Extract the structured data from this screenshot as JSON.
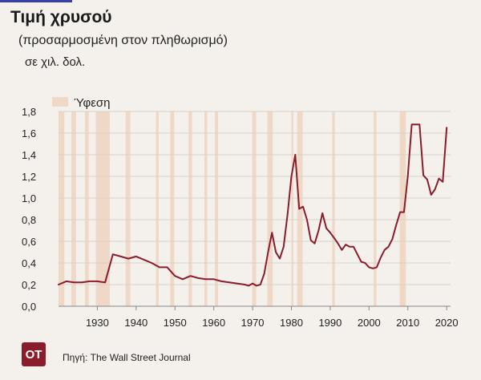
{
  "header": {
    "title": "Τιμή χρυσού",
    "subtitle": "(προσαρμοσμένη στον πληθωρισμό)",
    "unit": "σε χιλ. δολ."
  },
  "footer": {
    "logo_text": "ΟΤ",
    "source": "Πηγή: The Wall Street Journal"
  },
  "colors": {
    "line": "#8a1c2c",
    "recession": "#f0d8c6",
    "grid": "#d6d2cc",
    "background": "#f4f1ec"
  },
  "chart_data": {
    "type": "line",
    "legend": {
      "label": "Ύφεση",
      "position": "top-left"
    },
    "xlim": [
      1920,
      2021
    ],
    "ylim": [
      0,
      1.8
    ],
    "x_ticks": [
      1930,
      1940,
      1950,
      1960,
      1970,
      1980,
      1990,
      2000,
      2010,
      2020
    ],
    "y_ticks": [
      {
        "value": 0,
        "label": "0,0"
      },
      {
        "value": 0.2,
        "label": "0,2"
      },
      {
        "value": 0.4,
        "label": "0,4"
      },
      {
        "value": 0.6,
        "label": "0,6"
      },
      {
        "value": 0.8,
        "label": "0,8"
      },
      {
        "value": 1.0,
        "label": "1,0"
      },
      {
        "value": 1.2,
        "label": "1,2"
      },
      {
        "value": 1.4,
        "label": "1,4"
      },
      {
        "value": 1.6,
        "label": "1,6"
      },
      {
        "value": 1.8,
        "label": "1,8"
      }
    ],
    "grid": "horizontal",
    "recessions": [
      [
        1920.0,
        1921.5
      ],
      [
        1923.3,
        1924.5
      ],
      [
        1926.8,
        1927.8
      ],
      [
        1929.6,
        1933.2
      ],
      [
        1937.3,
        1938.5
      ],
      [
        1945.1,
        1945.8
      ],
      [
        1948.8,
        1949.8
      ],
      [
        1953.5,
        1954.4
      ],
      [
        1957.6,
        1958.3
      ],
      [
        1960.3,
        1961.1
      ],
      [
        1969.9,
        1970.9
      ],
      [
        1973.8,
        1975.2
      ],
      [
        1980.0,
        1980.5
      ],
      [
        1981.5,
        1982.9
      ],
      [
        1990.5,
        1991.2
      ],
      [
        2001.2,
        2001.9
      ],
      [
        2007.9,
        2009.5
      ]
    ],
    "series": [
      {
        "x": [
          1920,
          1922,
          1924,
          1926,
          1928,
          1930,
          1932,
          1934,
          1936,
          1938,
          1940,
          1942,
          1944,
          1946,
          1948,
          1950,
          1952,
          1954,
          1956,
          1958,
          1960,
          1962,
          1964,
          1966,
          1968,
          1969,
          1970,
          1971,
          1972,
          1973,
          1974,
          1975,
          1976,
          1977,
          1978,
          1979,
          1980,
          1981,
          1982,
          1983,
          1984,
          1985,
          1986,
          1987,
          1988,
          1989,
          1990,
          1991,
          1992,
          1993,
          1994,
          1995,
          1996,
          1997,
          1998,
          1999,
          2000,
          2001,
          2002,
          2003,
          2004,
          2005,
          2006,
          2007,
          2008,
          2009,
          2010,
          2011,
          2012,
          2013,
          2014,
          2015,
          2016,
          2017,
          2018,
          2019,
          2020
        ],
        "y": [
          0.2,
          0.23,
          0.22,
          0.22,
          0.23,
          0.23,
          0.22,
          0.48,
          0.46,
          0.44,
          0.46,
          0.43,
          0.4,
          0.36,
          0.36,
          0.28,
          0.25,
          0.28,
          0.26,
          0.25,
          0.25,
          0.23,
          0.22,
          0.21,
          0.2,
          0.19,
          0.21,
          0.19,
          0.2,
          0.3,
          0.5,
          0.68,
          0.5,
          0.44,
          0.55,
          0.85,
          1.2,
          1.4,
          0.9,
          0.92,
          0.8,
          0.61,
          0.58,
          0.7,
          0.86,
          0.72,
          0.68,
          0.63,
          0.58,
          0.52,
          0.57,
          0.55,
          0.55,
          0.48,
          0.41,
          0.4,
          0.36,
          0.35,
          0.36,
          0.45,
          0.52,
          0.55,
          0.62,
          0.75,
          0.87,
          0.87,
          1.2,
          1.68,
          1.68,
          1.68,
          1.21,
          1.17,
          1.03,
          1.08,
          1.18,
          1.15,
          1.65
        ]
      }
    ]
  }
}
